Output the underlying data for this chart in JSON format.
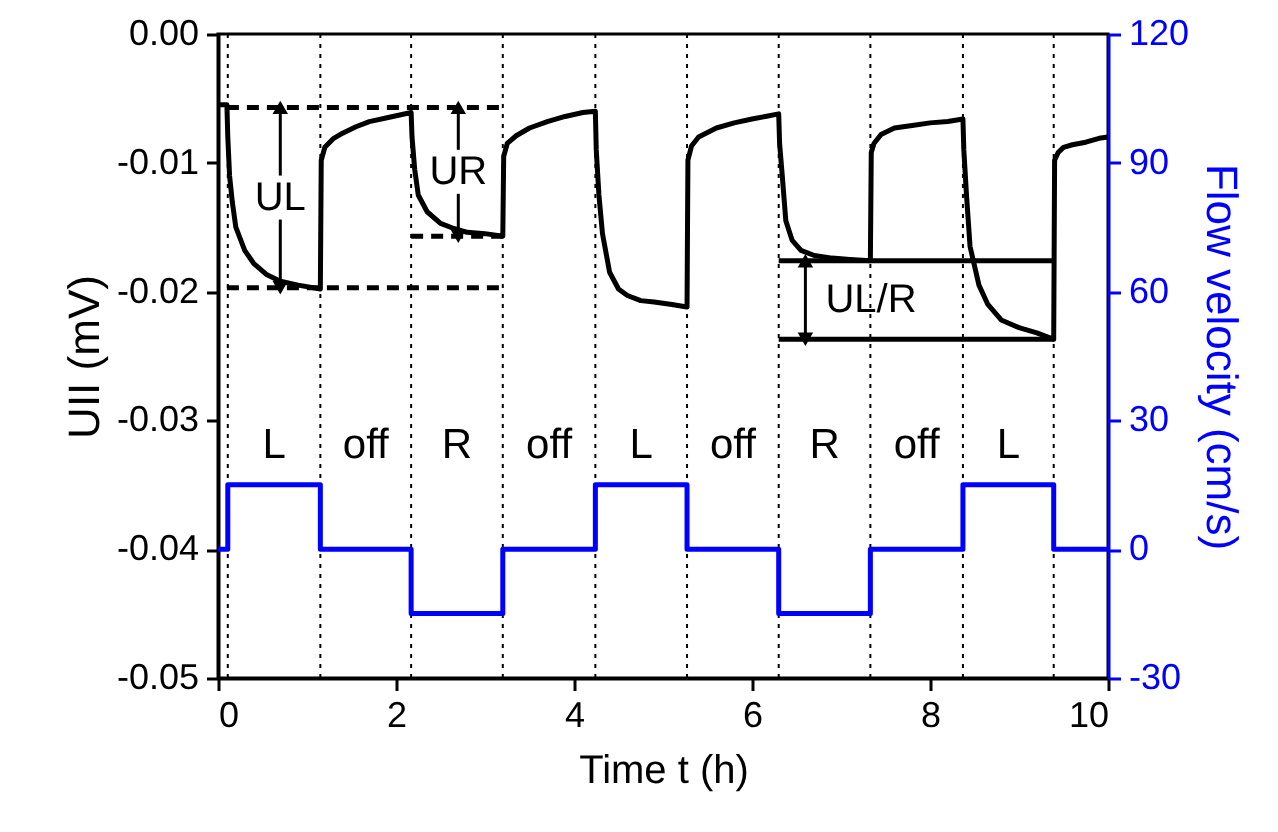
{
  "chart_data": {
    "type": "line",
    "xlabel": "Time t (h)",
    "ylabel": "UII (mV)",
    "y2label": "Flow velocity (cm/s)",
    "xlim": [
      0,
      10
    ],
    "xticks": [
      0,
      2,
      4,
      6,
      8,
      10
    ],
    "ylim": [
      -0.05,
      0
    ],
    "yticks": [
      -0.05,
      -0.04,
      -0.03,
      -0.02,
      -0.01,
      {
        "value": 0,
        "label": "0.00"
      }
    ],
    "y2lim": [
      -30,
      120
    ],
    "y2ticks": [
      -30,
      0,
      30,
      60,
      90,
      120
    ],
    "grid": false,
    "line_style": "solid",
    "series": [
      {
        "color": "#000000",
        "x": [
          0,
          0.1,
          0.11,
          0.13,
          0.16,
          0.2,
          0.3,
          0.4,
          0.55,
          0.7,
          0.9,
          1.15,
          1.16,
          1.2,
          1.3,
          1.4,
          1.55,
          1.7,
          1.9,
          2.17,
          2.18,
          2.21,
          2.25,
          2.35,
          2.5,
          2.65,
          2.8,
          3.0,
          3.2,
          3.21,
          3.25,
          3.35,
          3.5,
          3.7,
          3.9,
          4.1,
          4.24,
          4.25,
          4.28,
          4.32,
          4.4,
          4.5,
          4.6,
          4.75,
          4.9,
          5.1,
          5.27,
          5.28,
          5.32,
          5.4,
          5.6,
          5.8,
          6.0,
          6.15,
          6.3,
          6.31,
          6.34,
          6.38,
          6.45,
          6.55,
          6.7,
          6.9,
          7.1,
          7.33,
          7.34,
          7.37,
          7.45,
          7.6,
          7.8,
          8.0,
          8.2,
          8.37,
          8.38,
          8.41,
          8.45,
          8.55,
          8.65,
          8.8,
          9.0,
          9.2,
          9.39,
          9.4,
          9.44,
          9.5,
          9.6,
          9.75,
          9.9,
          10
        ],
        "values": [
          -0.0055,
          -0.0055,
          -0.008,
          -0.011,
          -0.013,
          -0.015,
          -0.0168,
          -0.0178,
          -0.0187,
          -0.0192,
          -0.0195,
          -0.0198,
          -0.0098,
          -0.0088,
          -0.0081,
          -0.0077,
          -0.0072,
          -0.0068,
          -0.0065,
          -0.0061,
          -0.008,
          -0.0105,
          -0.0125,
          -0.0138,
          -0.0147,
          -0.0151,
          -0.0154,
          -0.0155,
          -0.0157,
          -0.0095,
          -0.0085,
          -0.0079,
          -0.0073,
          -0.0068,
          -0.0064,
          -0.0061,
          -0.006,
          -0.009,
          -0.0125,
          -0.0155,
          -0.0185,
          -0.0198,
          -0.0203,
          -0.0207,
          -0.0208,
          -0.021,
          -0.0212,
          -0.0098,
          -0.0087,
          -0.008,
          -0.0073,
          -0.0069,
          -0.0066,
          -0.0064,
          -0.0062,
          -0.0085,
          -0.011,
          -0.0145,
          -0.016,
          -0.0168,
          -0.0172,
          -0.0174,
          -0.0175,
          -0.0176,
          -0.0092,
          -0.0085,
          -0.0078,
          -0.0073,
          -0.0071,
          -0.0069,
          -0.0068,
          -0.0066,
          -0.009,
          -0.0125,
          -0.0165,
          -0.0195,
          -0.021,
          -0.0222,
          -0.0228,
          -0.0232,
          -0.0237,
          -0.0098,
          -0.0092,
          -0.0088,
          -0.0086,
          -0.0084,
          -0.0081,
          -0.008
        ]
      },
      {
        "color": "#0000ff",
        "type": "step",
        "axis": "y2",
        "x": [
          0,
          0.11,
          1.15,
          2.17,
          3.2,
          4.24,
          5.27,
          6.3,
          7.33,
          8.37,
          9.39,
          10
        ],
        "values": [
          0,
          15,
          0,
          -15,
          0,
          15,
          0,
          -15,
          0,
          15,
          0,
          0
        ]
      },
      {
        "color": "#000000",
        "line_style": "dashed",
        "x": [
          0.1,
          3.2
        ],
        "values": [
          -0.0057,
          -0.0057
        ]
      },
      {
        "color": "#000000",
        "line_style": "dashed",
        "x": [
          0.1,
          3.2
        ],
        "values": [
          -0.0197,
          -0.0197
        ]
      },
      {
        "color": "#000000",
        "line_style": "dashed",
        "x": [
          2.17,
          3.2
        ],
        "values": [
          -0.0157,
          -0.0157
        ]
      },
      {
        "color": "#000000",
        "x": [
          6.3,
          9.39
        ],
        "values": [
          -0.0176,
          -0.0176
        ]
      },
      {
        "color": "#000000",
        "x": [
          6.3,
          9.39
        ],
        "values": [
          -0.0237,
          -0.0237
        ]
      }
    ],
    "ref_lines": [
      {
        "axis": "x",
        "value": 0.11,
        "line_style": "dotted"
      },
      {
        "axis": "x",
        "value": 1.15,
        "line_style": "dotted"
      },
      {
        "axis": "x",
        "value": 2.17,
        "line_style": "dotted"
      },
      {
        "axis": "x",
        "value": 3.2,
        "line_style": "dotted"
      },
      {
        "axis": "x",
        "value": 4.24,
        "line_style": "dotted"
      },
      {
        "axis": "x",
        "value": 5.27,
        "line_style": "dotted"
      },
      {
        "axis": "x",
        "value": 6.3,
        "line_style": "dotted"
      },
      {
        "axis": "x",
        "value": 7.33,
        "line_style": "dotted"
      },
      {
        "axis": "x",
        "value": 8.37,
        "line_style": "dotted"
      },
      {
        "axis": "x",
        "value": 9.39,
        "line_style": "dotted"
      }
    ],
    "annotations": [
      "L",
      "off",
      "R",
      "off",
      "L",
      "off",
      "R",
      "off",
      "L",
      {
        "text": "UL",
        "x": 0.7,
        "y": -0.0197
      },
      {
        "text": "UR",
        "x": 2.7,
        "y": -0.0157
      },
      {
        "text": "UL/R",
        "x": 6.6,
        "y": -0.0237
      }
    ]
  }
}
